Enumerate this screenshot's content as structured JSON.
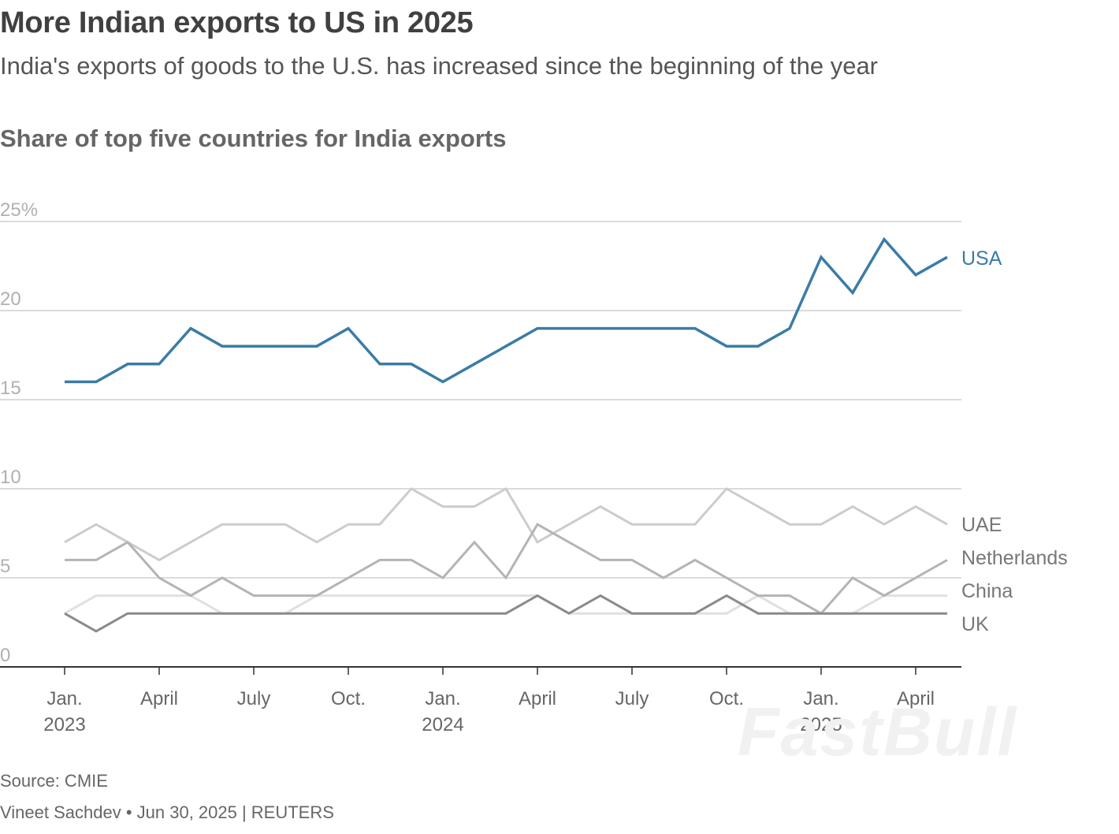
{
  "header": {
    "title": "More Indian exports to US in 2025",
    "subtitle": "India's exports of goods to the U.S. has increased since the beginning of the year",
    "chart_heading": "Share of top five countries for India exports"
  },
  "footer": {
    "source": "Source: CMIE",
    "byline": "Vineet Sachdev • Jun 30, 2025 | REUTERS"
  },
  "watermark": "FastBull",
  "chart_data": {
    "type": "line",
    "title": "Share of top five countries for India exports",
    "ylim": [
      0,
      25
    ],
    "y_ticks": [
      {
        "value": 0,
        "label": "0"
      },
      {
        "value": 5,
        "label": "5"
      },
      {
        "value": 10,
        "label": "10"
      },
      {
        "value": 15,
        "label": "15"
      },
      {
        "value": 20,
        "label": "20"
      },
      {
        "value": 25,
        "label": "25%"
      }
    ],
    "x": [
      "2023-01",
      "2023-02",
      "2023-03",
      "2023-04",
      "2023-05",
      "2023-06",
      "2023-07",
      "2023-08",
      "2023-09",
      "2023-10",
      "2023-11",
      "2023-12",
      "2024-01",
      "2024-02",
      "2024-03",
      "2024-04",
      "2024-05",
      "2024-06",
      "2024-07",
      "2024-08",
      "2024-09",
      "2024-10",
      "2024-11",
      "2024-12",
      "2025-01",
      "2025-02",
      "2025-03",
      "2025-04",
      "2025-05"
    ],
    "x_ticks": [
      {
        "x": "2023-01",
        "label": "Jan.",
        "year": "2023"
      },
      {
        "x": "2023-04",
        "label": "April",
        "year": ""
      },
      {
        "x": "2023-07",
        "label": "July",
        "year": ""
      },
      {
        "x": "2023-10",
        "label": "Oct.",
        "year": ""
      },
      {
        "x": "2024-01",
        "label": "Jan.",
        "year": "2024"
      },
      {
        "x": "2024-04",
        "label": "April",
        "year": ""
      },
      {
        "x": "2024-07",
        "label": "July",
        "year": ""
      },
      {
        "x": "2024-10",
        "label": "Oct.",
        "year": ""
      },
      {
        "x": "2025-01",
        "label": "Jan.",
        "year": "2025"
      },
      {
        "x": "2025-04",
        "label": "April",
        "year": ""
      }
    ],
    "grid": true,
    "series": [
      {
        "name": "UAE",
        "color": "#cccccc",
        "values": [
          7,
          8,
          7,
          6,
          7,
          8,
          8,
          8,
          7,
          8,
          8,
          10,
          9,
          9,
          10,
          7,
          8,
          9,
          8,
          8,
          8,
          10,
          9,
          8,
          8,
          9,
          8,
          9,
          8
        ]
      },
      {
        "name": "China",
        "color": "#e0e0e0",
        "values": [
          3,
          4,
          4,
          4,
          4,
          3,
          3,
          3,
          4,
          4,
          4,
          4,
          4,
          4,
          4,
          4,
          3,
          3,
          3,
          3,
          3,
          3,
          4,
          3,
          3,
          3,
          4,
          4,
          4
        ]
      },
      {
        "name": "Netherlands",
        "color": "#b4b4b4",
        "values": [
          6,
          6,
          7,
          5,
          4,
          5,
          4,
          4,
          4,
          5,
          6,
          6,
          5,
          7,
          5,
          8,
          7,
          6,
          6,
          5,
          6,
          5,
          4,
          4,
          3,
          5,
          4,
          5,
          6
        ]
      },
      {
        "name": "UK",
        "color": "#8a8a8a",
        "values": [
          3,
          2,
          3,
          3,
          3,
          3,
          3,
          3,
          3,
          3,
          3,
          3,
          3,
          3,
          3,
          4,
          3,
          4,
          3,
          3,
          3,
          4,
          3,
          3,
          3,
          3,
          3,
          3,
          3
        ]
      },
      {
        "name": "USA",
        "color": "#3b7ca6",
        "values": [
          16,
          16,
          17,
          17,
          19,
          18,
          18,
          18,
          18,
          19,
          17,
          17,
          16,
          17,
          18,
          19,
          19,
          19,
          19,
          19,
          19,
          18,
          18,
          19,
          23,
          21,
          24,
          22,
          23
        ]
      }
    ]
  }
}
